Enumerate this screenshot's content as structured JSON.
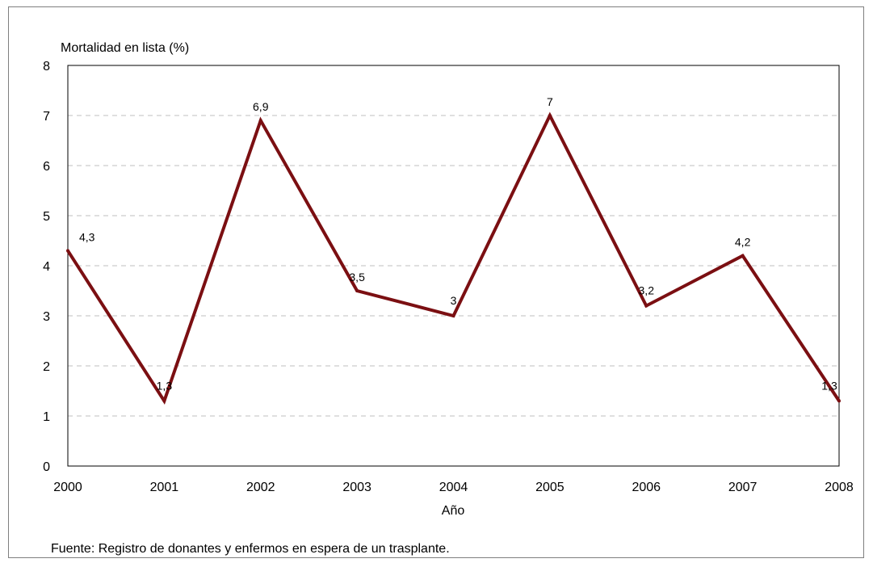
{
  "chart_data": {
    "type": "line",
    "ylabel": "Mortalidad en lista (%)",
    "xlabel": "Año",
    "categories": [
      "2000",
      "2001",
      "2002",
      "2003",
      "2004",
      "2005",
      "2006",
      "2007",
      "2008"
    ],
    "series": [
      {
        "values": [
          4.3,
          1.3,
          6.9,
          3.5,
          3.0,
          7.0,
          3.2,
          4.2,
          1.3
        ],
        "labels": [
          "4,3",
          "1,3",
          "6,9",
          "3,5",
          "3",
          "7",
          "3,2",
          "4,2",
          "1,3"
        ],
        "color": "#7b0f12"
      }
    ],
    "ylim": [
      0,
      8
    ],
    "yticks": [
      "0",
      "1",
      "2",
      "3",
      "4",
      "5",
      "6",
      "7",
      "8"
    ],
    "grid": "horizontal-dashed"
  },
  "source_note": "Fuente: Registro de donantes y enfermos en espera de un trasplante."
}
